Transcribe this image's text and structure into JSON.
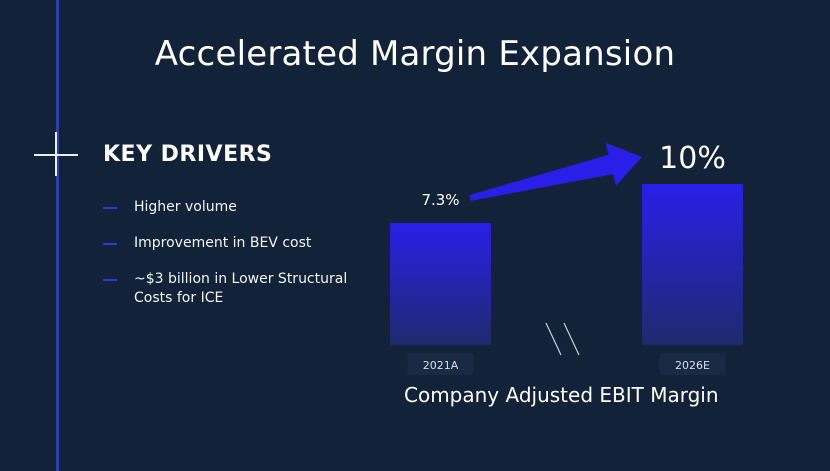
{
  "slide": {
    "title": "Accelerated Margin Expansion",
    "drivers_heading": "KEY DRIVERS",
    "drivers": [
      "Higher volume",
      "Improvement in BEV cost",
      "~$3 billion in Lower Structural Costs for ICE"
    ]
  },
  "chart_data": {
    "type": "bar",
    "title": "Company Adjusted EBIT Margin",
    "categories": [
      "2021A",
      "2026E"
    ],
    "values": [
      7.3,
      10
    ],
    "value_labels": [
      "7.3%",
      "10%"
    ],
    "axis_break": true,
    "colors": {
      "bar_top": "#2a1fe8",
      "bar_bottom": "#1e2a6e",
      "arrow": "#2a1fe8"
    }
  }
}
